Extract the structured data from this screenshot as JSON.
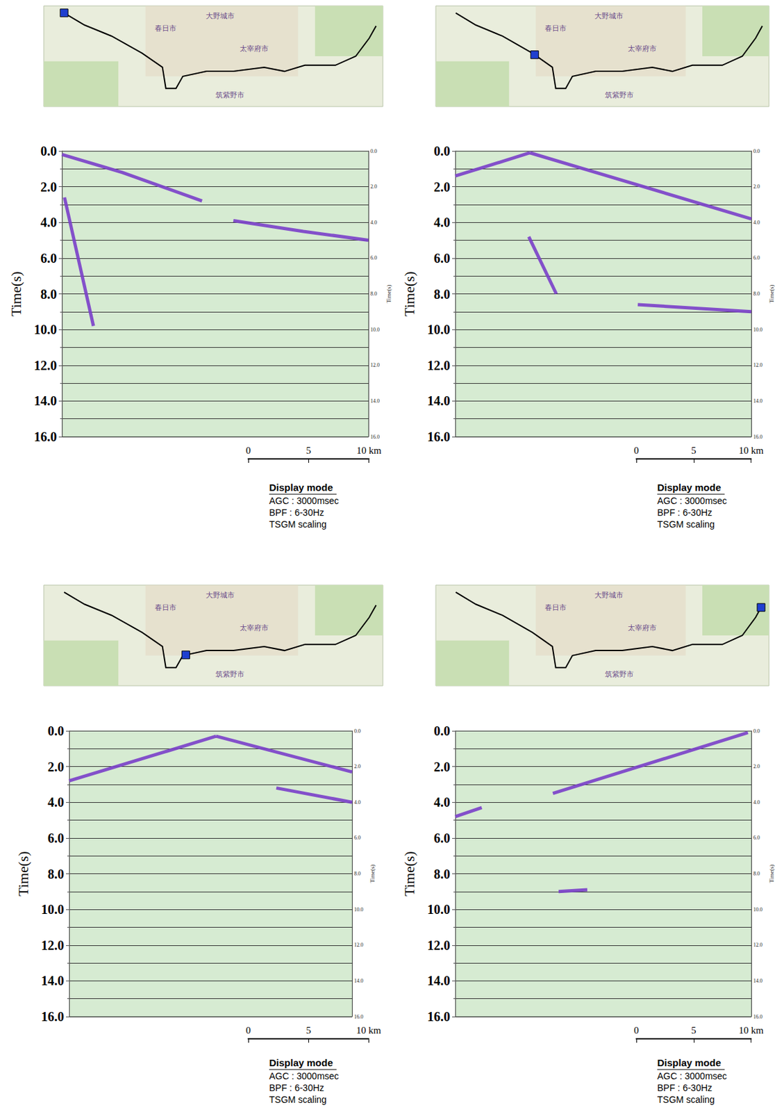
{
  "chart_data": [
    {
      "type": "line",
      "ylabel": "Time(s)",
      "xlim": [
        0,
        25.4
      ],
      "ylim": [
        0,
        16
      ],
      "yticks": [
        {
          "value": 0,
          "label": "0.0"
        },
        {
          "value": 2,
          "label": "2.0"
        },
        {
          "value": 4,
          "label": "4.0"
        },
        {
          "value": 6,
          "label": "6.0"
        },
        {
          "value": 8,
          "label": "8.0"
        },
        {
          "value": 10,
          "label": "10.0"
        },
        {
          "value": 12,
          "label": "12.0"
        },
        {
          "value": 14,
          "label": "14.0"
        },
        {
          "value": 16,
          "label": "16.0"
        }
      ],
      "grid": true,
      "tick_labels": "y",
      "source_km": 0,
      "series": [
        {
          "x": [
            0,
            5,
            11.6
          ],
          "values": [
            0.2,
            1.2,
            2.8
          ],
          "color": "#7a3fc9"
        },
        {
          "x": [
            14.2,
            20,
            25.4
          ],
          "values": [
            3.9,
            4.5,
            5.0
          ],
          "color": "#7a3fc9"
        },
        {
          "x": [
            0.2,
            1.5,
            2.6
          ],
          "values": [
            2.6,
            6.5,
            9.8
          ],
          "color": "#7a3fc9"
        }
      ],
      "scale_bar": {
        "xlim": [
          0,
          10
        ],
        "xticks": [
          0,
          5,
          {
            "value": 10,
            "label": "10 km"
          }
        ]
      },
      "display_mode": {
        "title": "Display mode",
        "lines": [
          "AGC : 3000msec",
          "BPF : 6-30Hz",
          "TSGM scaling"
        ]
      },
      "map_labels": [
        "春日市",
        "大野城市",
        "太宰府市",
        "筑紫野市"
      ]
    },
    {
      "type": "line",
      "ylabel": "Time(s)",
      "xlim": [
        0,
        25.8
      ],
      "ylim": [
        0,
        16
      ],
      "yticks": [
        {
          "value": 0,
          "label": "0.0"
        },
        {
          "value": 2,
          "label": "2.0"
        },
        {
          "value": 4,
          "label": "4.0"
        },
        {
          "value": 6,
          "label": "6.0"
        },
        {
          "value": 8,
          "label": "8.0"
        },
        {
          "value": 10,
          "label": "10.0"
        },
        {
          "value": 12,
          "label": "12.0"
        },
        {
          "value": 14,
          "label": "14.0"
        },
        {
          "value": 16,
          "label": "16.0"
        }
      ],
      "grid": true,
      "tick_labels": "y",
      "source_km": 6.5,
      "series": [
        {
          "x": [
            0,
            6.5
          ],
          "values": [
            1.4,
            0.1
          ],
          "color": "#7a3fc9"
        },
        {
          "x": [
            6.5,
            25.8
          ],
          "values": [
            0.1,
            3.8
          ],
          "color": "#7a3fc9"
        },
        {
          "x": [
            15.9,
            25.8
          ],
          "values": [
            8.6,
            9.0
          ],
          "color": "#7a3fc9"
        },
        {
          "x": [
            6.4,
            8.8
          ],
          "values": [
            4.8,
            8.0
          ],
          "color": "#7a3fc9"
        }
      ],
      "scale_bar": {
        "xlim": [
          0,
          10
        ],
        "xticks": [
          0,
          5,
          {
            "value": 10,
            "label": "10 km"
          }
        ]
      },
      "display_mode": {
        "title": "Display mode",
        "lines": [
          "AGC : 3000msec",
          "BPF : 6-30Hz",
          "TSGM scaling"
        ]
      },
      "map_labels": [
        "春日市",
        "大野城市",
        "太宰府市",
        "筑紫野市"
      ]
    },
    {
      "type": "line",
      "ylabel": "Time(s)",
      "xlim": [
        0,
        23.5
      ],
      "ylim": [
        0,
        16
      ],
      "yticks": [
        {
          "value": 0,
          "label": "0.0"
        },
        {
          "value": 2,
          "label": "2.0"
        },
        {
          "value": 4,
          "label": "4.0"
        },
        {
          "value": 6,
          "label": "6.0"
        },
        {
          "value": 8,
          "label": "8.0"
        },
        {
          "value": 10,
          "label": "10.0"
        },
        {
          "value": 12,
          "label": "12.0"
        },
        {
          "value": 14,
          "label": "14.0"
        },
        {
          "value": 16,
          "label": "16.0"
        }
      ],
      "grid": true,
      "tick_labels": "y",
      "source_km": 12.2,
      "series": [
        {
          "x": [
            0,
            12.2
          ],
          "values": [
            2.8,
            0.3
          ],
          "color": "#7a3fc9"
        },
        {
          "x": [
            12.2,
            23.5
          ],
          "values": [
            0.3,
            2.3
          ],
          "color": "#7a3fc9"
        },
        {
          "x": [
            17.2,
            23.5
          ],
          "values": [
            3.2,
            4.0
          ],
          "color": "#7a3fc9"
        }
      ],
      "scale_bar": {
        "xlim": [
          0,
          10
        ],
        "xticks": [
          0,
          5,
          {
            "value": 10,
            "label": "10 km"
          }
        ]
      },
      "display_mode": {
        "title": "Display mode",
        "lines": [
          "AGC : 3000msec",
          "BPF : 6-30Hz",
          "TSGM scaling"
        ]
      },
      "map_labels": [
        "春日市",
        "大野城市",
        "太宰府市",
        "筑紫野市"
      ]
    },
    {
      "type": "line",
      "ylabel": "Time(s)",
      "xlim": [
        0,
        25.8
      ],
      "ylim": [
        0,
        16
      ],
      "yticks": [
        {
          "value": 0,
          "label": "0.0"
        },
        {
          "value": 2,
          "label": "2.0"
        },
        {
          "value": 4,
          "label": "4.0"
        },
        {
          "value": 6,
          "label": "6.0"
        },
        {
          "value": 8,
          "label": "8.0"
        },
        {
          "value": 10,
          "label": "10.0"
        },
        {
          "value": 12,
          "label": "12.0"
        },
        {
          "value": 14,
          "label": "14.0"
        },
        {
          "value": 16,
          "label": "16.0"
        }
      ],
      "grid": true,
      "tick_labels": "y",
      "source_km": 25.5,
      "series": [
        {
          "x": [
            8.5,
            25.5
          ],
          "values": [
            3.5,
            0.1
          ],
          "color": "#7a3fc9"
        },
        {
          "x": [
            0,
            2.3
          ],
          "values": [
            4.8,
            4.3
          ],
          "color": "#7a3fc9"
        },
        {
          "x": [
            9.0,
            11.5
          ],
          "values": [
            9.0,
            8.9
          ],
          "color": "#7a3fc9"
        }
      ],
      "scale_bar": {
        "xlim": [
          0,
          10
        ],
        "xticks": [
          0,
          5,
          {
            "value": 10,
            "label": "10 km"
          }
        ]
      },
      "display_mode": {
        "title": "Display mode",
        "lines": [
          "AGC : 3000msec",
          "BPF : 6-30Hz",
          "TSGM scaling"
        ]
      },
      "map_labels": [
        "春日市",
        "大野城市",
        "太宰府市",
        "筑紫野市"
      ]
    }
  ]
}
